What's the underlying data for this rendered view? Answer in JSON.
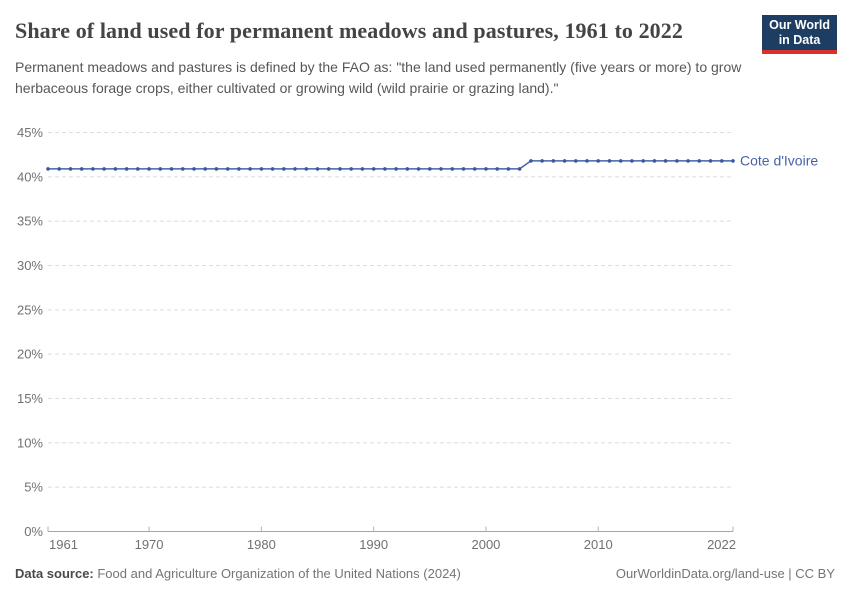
{
  "header": {
    "title": "Share of land used for permanent meadows and pastures, 1961 to 2022",
    "subtitle": "Permanent meadows and pastures is defined by the FAO as: \"the land used permanently (five years or more) to grow herbaceous forage crops, either cultivated or growing wild (wild prairie or grazing land).\"",
    "logo": {
      "line1": "Our World",
      "line2": "in Data",
      "bg_color": "#1d3d63",
      "accent_color": "#d4342c"
    }
  },
  "chart_data": {
    "type": "line",
    "title": "Share of land used for permanent meadows and pastures, 1961 to 2022",
    "xlabel": "",
    "ylabel": "",
    "xlim": [
      1961,
      2022
    ],
    "ylim": [
      0,
      45
    ],
    "grid": "horizontal-dashed",
    "legend_position": "end-of-line-label",
    "xticks": [
      1961,
      1970,
      1980,
      1990,
      2000,
      2010,
      2022
    ],
    "yticks": [
      "0%",
      "5%",
      "10%",
      "15%",
      "20%",
      "25%",
      "30%",
      "35%",
      "40%",
      "45%"
    ],
    "series": [
      {
        "name": "Cote d'Ivoire",
        "color": "#4463a9",
        "dot_color": "#3a589e",
        "x": [
          1961,
          1962,
          1963,
          1964,
          1965,
          1966,
          1967,
          1968,
          1969,
          1970,
          1971,
          1972,
          1973,
          1974,
          1975,
          1976,
          1977,
          1978,
          1979,
          1980,
          1981,
          1982,
          1983,
          1984,
          1985,
          1986,
          1987,
          1988,
          1989,
          1990,
          1991,
          1992,
          1993,
          1994,
          1995,
          1996,
          1997,
          1998,
          1999,
          2000,
          2001,
          2002,
          2003,
          2004,
          2005,
          2006,
          2007,
          2008,
          2009,
          2010,
          2011,
          2012,
          2013,
          2014,
          2015,
          2016,
          2017,
          2018,
          2019,
          2020,
          2021,
          2022
        ],
        "values": [
          40.9,
          40.9,
          40.9,
          40.9,
          40.9,
          40.9,
          40.9,
          40.9,
          40.9,
          40.9,
          40.9,
          40.9,
          40.9,
          40.9,
          40.9,
          40.9,
          40.9,
          40.9,
          40.9,
          40.9,
          40.9,
          40.9,
          40.9,
          40.9,
          40.9,
          40.9,
          40.9,
          40.9,
          40.9,
          40.9,
          40.9,
          40.9,
          40.9,
          40.9,
          40.9,
          40.9,
          40.9,
          40.9,
          40.9,
          40.9,
          40.9,
          40.9,
          40.9,
          41.8,
          41.8,
          41.8,
          41.8,
          41.8,
          41.8,
          41.8,
          41.8,
          41.8,
          41.8,
          41.8,
          41.8,
          41.8,
          41.8,
          41.8,
          41.8,
          41.8,
          41.8,
          41.8
        ]
      }
    ],
    "style": {
      "gridline_color": "#dcdcdc",
      "axis_color": "#a5a5a5",
      "tick_color": "#b3b3b3",
      "tick_label_color": "#717171"
    }
  },
  "footer": {
    "source_label": "Data source:",
    "source_text": " Food and Agriculture Organization of the United Nations (2024)",
    "attribution": "OurWorldinData.org/land-use | CC BY"
  }
}
